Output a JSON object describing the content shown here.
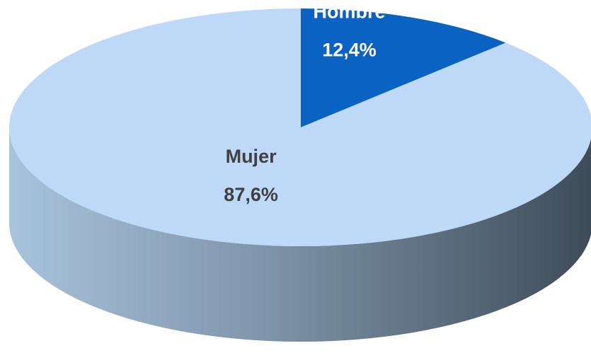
{
  "chart_data": {
    "type": "pie",
    "categories": [
      "Hombre",
      "Mujer"
    ],
    "values": [
      12.4,
      87.6
    ],
    "value_labels": [
      "12,4%",
      "87,6%"
    ],
    "colors": [
      "#0a62c2",
      "#bdd9f7"
    ],
    "label_colors": [
      "#ffffff",
      "#404040"
    ]
  }
}
